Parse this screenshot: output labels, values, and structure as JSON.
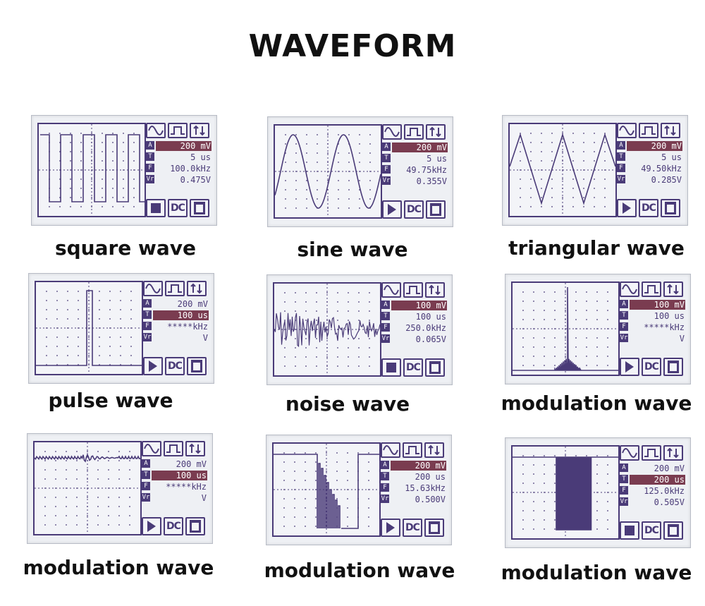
{
  "page": {
    "title": "WAVEFORM"
  },
  "panels": [
    {
      "label": "square wave",
      "amp": "200 mV",
      "time": "5 us",
      "freq": "100.0kHz",
      "vrms": "0.475V",
      "amp_hl": true,
      "time_hl": false,
      "run": "stop"
    },
    {
      "label": "sine wave",
      "amp": "200 mV",
      "time": "5 us",
      "freq": "49.75kHz",
      "vrms": "0.355V",
      "amp_hl": true,
      "time_hl": false,
      "run": "play"
    },
    {
      "label": "triangular wave",
      "amp": "200 mV",
      "time": "5 us",
      "freq": "49.50kHz",
      "vrms": "0.285V",
      "amp_hl": true,
      "time_hl": false,
      "run": "play"
    },
    {
      "label": "pulse wave",
      "amp": "200 mV",
      "time": "100 us",
      "freq": "*****kHz",
      "vrms": "V",
      "amp_hl": false,
      "time_hl": true,
      "run": "play"
    },
    {
      "label": "noise wave",
      "amp": "100 mV",
      "time": "100 us",
      "freq": "250.0kHz",
      "vrms": "0.065V",
      "amp_hl": true,
      "time_hl": false,
      "run": "stop"
    },
    {
      "label": "modulation wave",
      "amp": "100 mV",
      "time": "100 us",
      "freq": "*****kHz",
      "vrms": "V",
      "amp_hl": true,
      "time_hl": false,
      "run": "play"
    },
    {
      "label": "modulation wave",
      "amp": "200 mV",
      "time": "100 us",
      "freq": "*****kHz",
      "vrms": "V",
      "amp_hl": false,
      "time_hl": true,
      "run": "play"
    },
    {
      "label": "modulation wave",
      "amp": "200 mV",
      "time": "200 us",
      "freq": "15.63kHz",
      "vrms": "0.500V",
      "amp_hl": true,
      "time_hl": false,
      "run": "play"
    },
    {
      "label": "modulation wave",
      "amp": "200 mV",
      "time": "200 us",
      "freq": "125.0kHz",
      "vrms": "0.505V",
      "amp_hl": false,
      "time_hl": true,
      "run": "stop"
    }
  ],
  "buttons": {
    "dc_label": "DC"
  },
  "tags": {
    "amp": "A",
    "time": "T",
    "freq": "F",
    "vrms": "Vr"
  },
  "colors": {
    "accent": "#4a3b78",
    "highlight": "#7a3c50",
    "screen": "#eef0f4"
  }
}
